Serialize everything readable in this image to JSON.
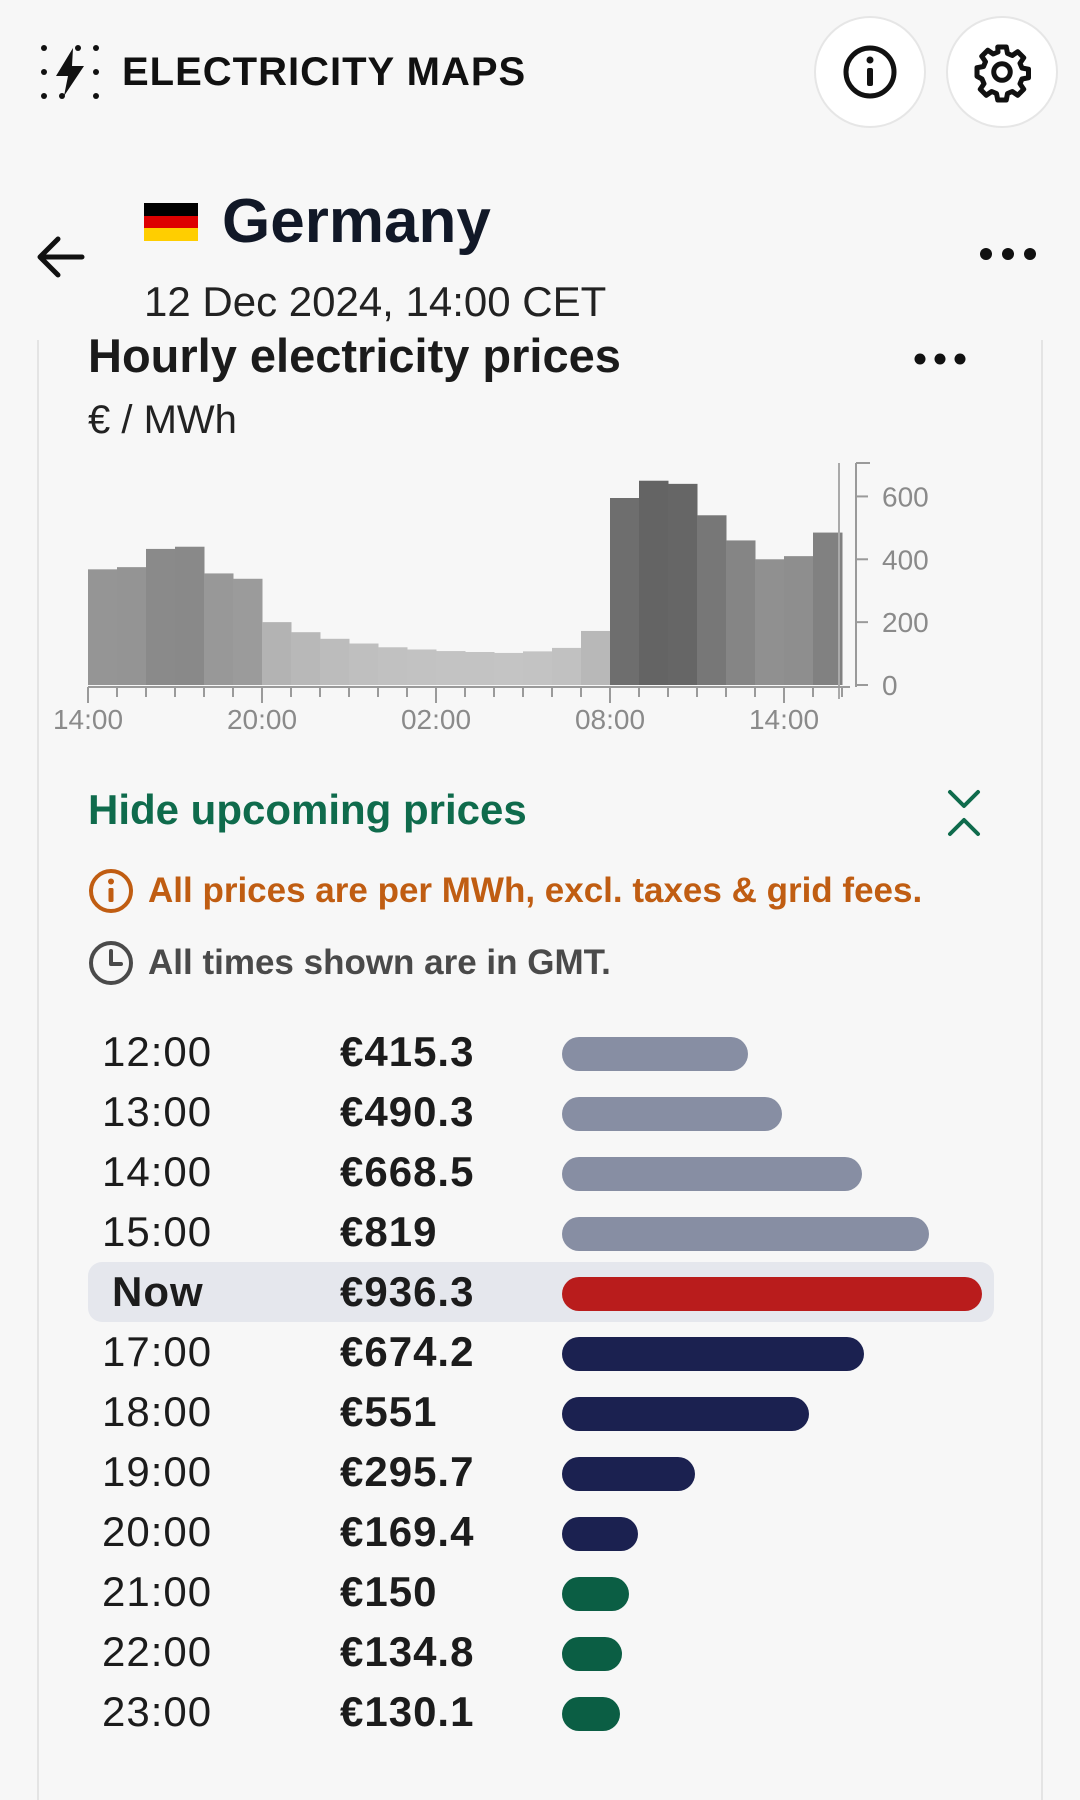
{
  "app": {
    "name": "ELECTRICITY MAPS"
  },
  "zone": {
    "country": "Germany",
    "datetime": "12 Dec 2024, 14:00 CET",
    "flag_colors": [
      "#000000",
      "#dd0000",
      "#ffce00"
    ]
  },
  "card": {
    "title": "Hourly electricity prices",
    "unit": "€ / MWh",
    "toggle_label": "Hide upcoming prices",
    "note_prices": "All prices are per MWh, excl. taxes & grid fees.",
    "note_times": "All times shown are in GMT."
  },
  "chart_data": {
    "type": "bar",
    "ylim": [
      0,
      700
    ],
    "y_ticks": [
      0,
      200,
      400,
      600
    ],
    "x_tick_labels": [
      "14:00",
      "20:00",
      "02:00",
      "08:00",
      "14:00"
    ],
    "values": [
      368,
      375,
      433,
      440,
      355,
      338,
      200,
      168,
      147,
      132,
      120,
      113,
      108,
      105,
      102,
      107,
      118,
      172,
      595,
      650,
      640,
      540,
      460,
      400,
      410,
      485
    ],
    "current_index": 25,
    "grid": false
  },
  "price_list": [
    {
      "time": "12:00",
      "price": "€415.3",
      "value": 415.3,
      "status": "past"
    },
    {
      "time": "13:00",
      "price": "€490.3",
      "value": 490.3,
      "status": "past"
    },
    {
      "time": "14:00",
      "price": "€668.5",
      "value": 668.5,
      "status": "past"
    },
    {
      "time": "15:00",
      "price": "€819",
      "value": 819,
      "status": "past"
    },
    {
      "time": "Now",
      "price": "€936.3",
      "value": 936.3,
      "status": "now"
    },
    {
      "time": "17:00",
      "price": "€674.2",
      "value": 674.2,
      "status": "high"
    },
    {
      "time": "18:00",
      "price": "€551",
      "value": 551,
      "status": "high"
    },
    {
      "time": "19:00",
      "price": "€295.7",
      "value": 295.7,
      "status": "high"
    },
    {
      "time": "20:00",
      "price": "€169.4",
      "value": 169.4,
      "status": "high"
    },
    {
      "time": "21:00",
      "price": "€150",
      "value": 150,
      "status": "low"
    },
    {
      "time": "22:00",
      "price": "€134.8",
      "value": 134.8,
      "status": "low"
    },
    {
      "time": "23:00",
      "price": "€130.1",
      "value": 130.1,
      "status": "low"
    }
  ],
  "colors": {
    "past": "#878ea3",
    "now": "#b91c1c",
    "high": "#1b2150",
    "low": "#0b5e44",
    "accent": "#0f6b4c",
    "warning": "#c05d12"
  }
}
